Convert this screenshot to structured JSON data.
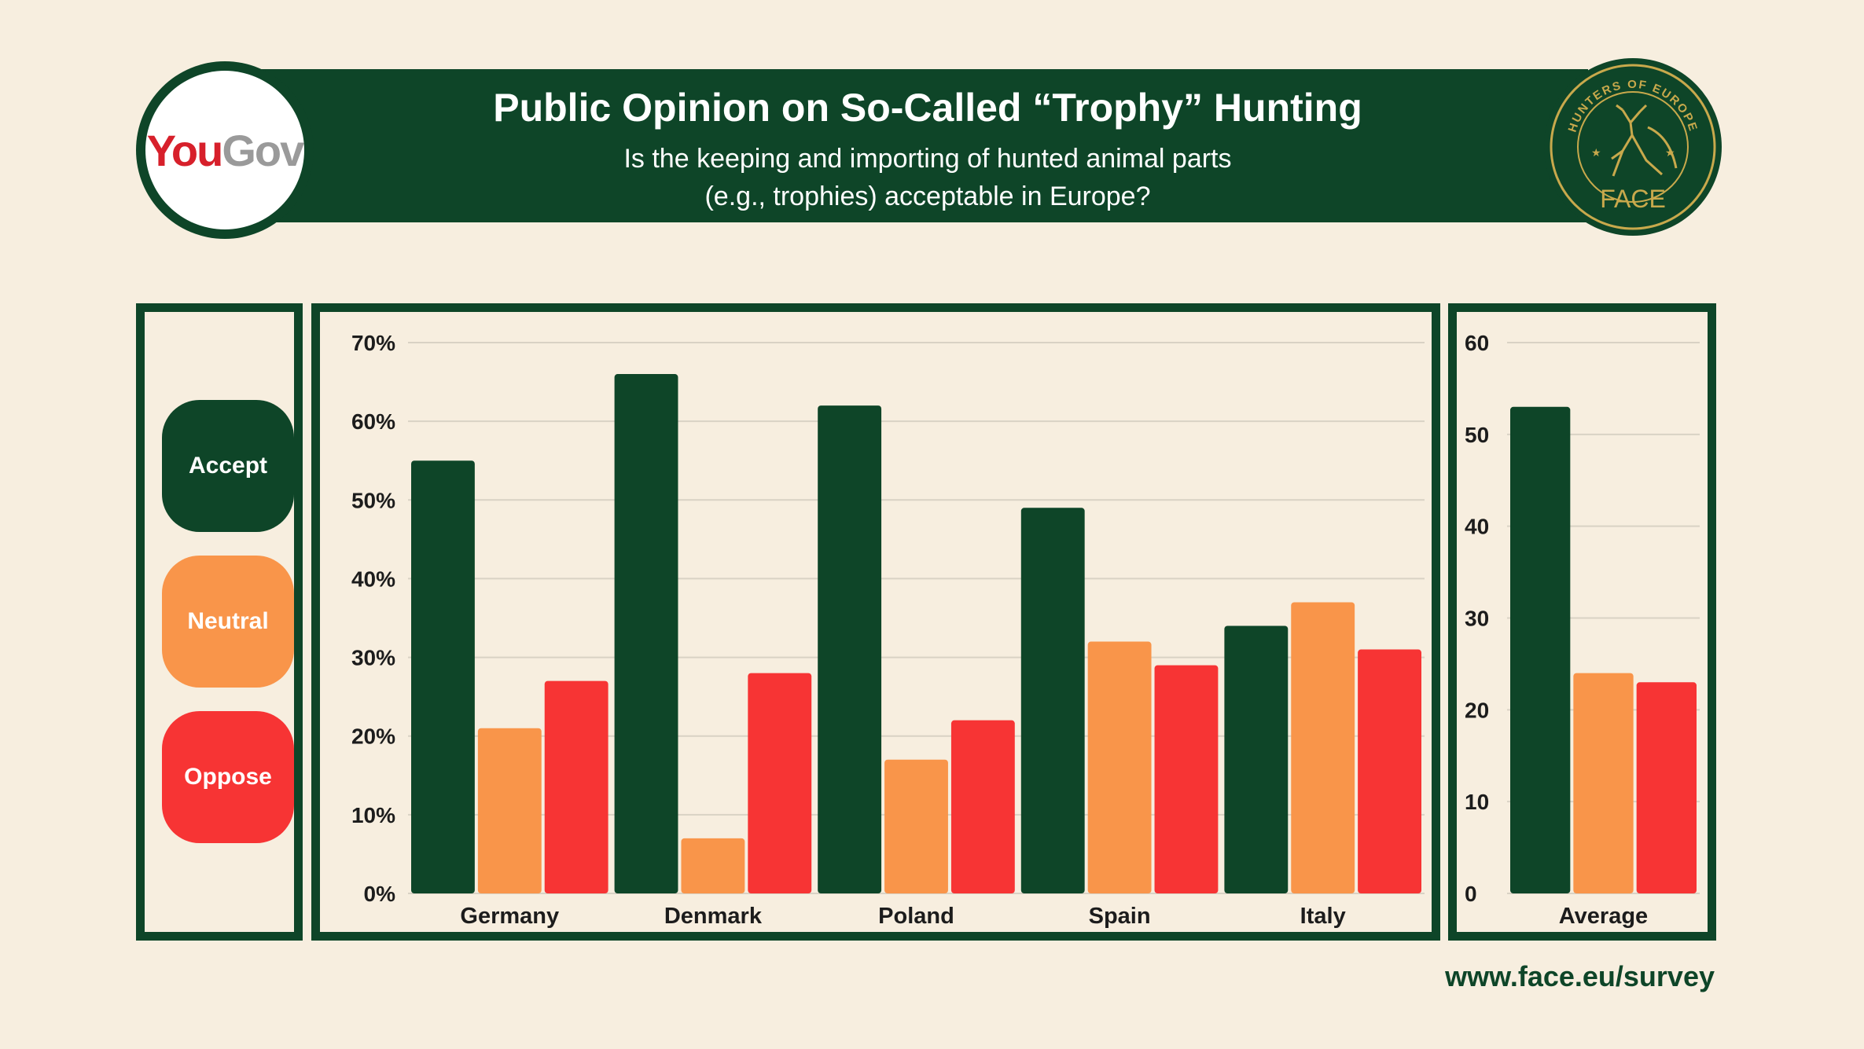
{
  "header": {
    "title": "Public Opinion on So-Called “Trophy” Hunting",
    "subtitle_line1": "Is the keeping and importing of hunted animal parts",
    "subtitle_line2": "(e.g., trophies) acceptable in Europe?"
  },
  "logos": {
    "yougov_you": "You",
    "yougov_gov": "Gov",
    "face_arc_text": "HUNTERS OF EUROPE",
    "face_name": "FACE"
  },
  "legend": [
    {
      "label": "Accept",
      "color": "#0e4528"
    },
    {
      "label": "Neutral",
      "color": "#f9954a"
    },
    {
      "label": "Oppose",
      "color": "#f73434"
    }
  ],
  "footer": {
    "url": "www.face.eu/survey"
  },
  "chart_data": [
    {
      "type": "bar",
      "categories": [
        "Germany",
        "Denmark",
        "Poland",
        "Spain",
        "Italy"
      ],
      "series": [
        {
          "name": "Accept",
          "values": [
            55,
            66,
            62,
            49,
            34
          ]
        },
        {
          "name": "Neutral",
          "values": [
            21,
            7,
            17,
            32,
            37
          ]
        },
        {
          "name": "Oppose",
          "values": [
            27,
            28,
            22,
            29,
            31
          ]
        }
      ],
      "ylim": [
        0,
        70
      ],
      "yticks": [
        0,
        10,
        20,
        30,
        40,
        50,
        60,
        70
      ],
      "ytick_labels": [
        "0%",
        "10%",
        "20%",
        "30%",
        "40%",
        "50%",
        "60%",
        "70%"
      ],
      "grid": true
    },
    {
      "type": "bar",
      "categories": [
        "Average"
      ],
      "series": [
        {
          "name": "Accept",
          "values": [
            53
          ]
        },
        {
          "name": "Neutral",
          "values": [
            24
          ]
        },
        {
          "name": "Oppose",
          "values": [
            23
          ]
        }
      ],
      "ylim": [
        0,
        60
      ],
      "yticks": [
        0,
        10,
        20,
        30,
        40,
        50,
        60
      ],
      "ytick_labels": [
        "0",
        "10",
        "20",
        "30",
        "40",
        "50",
        "60"
      ],
      "grid": true
    }
  ]
}
